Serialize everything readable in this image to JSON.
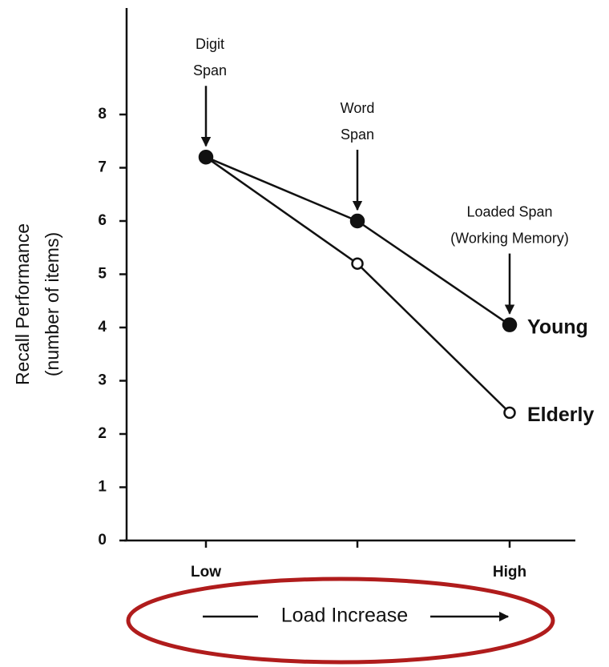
{
  "chart_data": {
    "type": "line",
    "ylabel": [
      "Recall Performance",
      "(number of items)"
    ],
    "xlabel": "Load Increase",
    "categories": [
      "Low",
      null,
      "High"
    ],
    "series": [
      {
        "name": "Young",
        "color": "#111111",
        "marker": "filled",
        "values": [
          7.2,
          6.0,
          4.05
        ]
      },
      {
        "name": "Elderly",
        "color": "#111111",
        "marker": "open",
        "values": [
          7.2,
          5.2,
          2.4
        ]
      }
    ],
    "ylim": [
      0,
      10
    ],
    "yticks": [
      0,
      1,
      2,
      3,
      4,
      5,
      6,
      7,
      8
    ],
    "annotations": [
      {
        "text": [
          "Digit",
          "Span"
        ]
      },
      {
        "text": [
          "Word",
          "Span"
        ]
      },
      {
        "text": [
          "Loaded Span",
          "(Working Memory)"
        ]
      }
    ]
  }
}
